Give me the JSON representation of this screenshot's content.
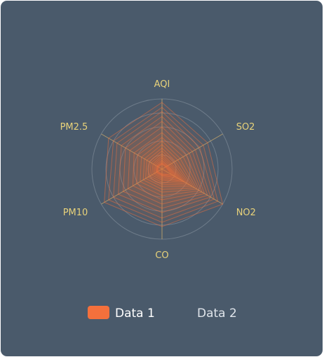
{
  "chart_data": {
    "type": "radar",
    "indicators": [
      "AQI",
      "SO2",
      "NO2",
      "CO",
      "PM10",
      "PM2.5"
    ],
    "indicator_max": [
      100,
      100,
      100,
      100,
      100,
      100
    ],
    "grid_rings": 5,
    "legend_position": "bottom",
    "series": [
      {
        "name": "Data 1",
        "color": "#f4703c",
        "fill_opacity": 0.05,
        "line_opacity": 0.5,
        "legend_selected": true,
        "values": [
          [
            95,
            75,
            100,
            82,
            95,
            88
          ],
          [
            88,
            68,
            92,
            76,
            88,
            80
          ],
          [
            82,
            62,
            86,
            70,
            80,
            74
          ],
          [
            75,
            55,
            80,
            62,
            72,
            67
          ],
          [
            68,
            50,
            75,
            56,
            64,
            60
          ],
          [
            60,
            45,
            70,
            50,
            56,
            53
          ],
          [
            52,
            40,
            66,
            44,
            48,
            46
          ],
          [
            45,
            35,
            62,
            38,
            42,
            40
          ],
          [
            40,
            30,
            58,
            33,
            36,
            34
          ],
          [
            35,
            26,
            54,
            29,
            31,
            29
          ],
          [
            30,
            22,
            50,
            25,
            27,
            25
          ],
          [
            26,
            19,
            46,
            22,
            23,
            21
          ],
          [
            22,
            16,
            42,
            19,
            20,
            18
          ],
          [
            19,
            14,
            38,
            16,
            17,
            15
          ],
          [
            16,
            12,
            35,
            14,
            14,
            13
          ],
          [
            13,
            10,
            32,
            12,
            12,
            11
          ],
          [
            11,
            9,
            28,
            10,
            10,
            9
          ],
          [
            9,
            8,
            24,
            9,
            9,
            8
          ],
          [
            8,
            7,
            20,
            8,
            8,
            7
          ],
          [
            7,
            6,
            16,
            7,
            7,
            6
          ]
        ]
      },
      {
        "name": "Data 2",
        "color": "#e6e9ee",
        "legend_selected": false,
        "values": []
      }
    ]
  },
  "legend": {
    "items": [
      {
        "label": "Data 1",
        "color": "#f4703c",
        "text_color": "#ffffff"
      },
      {
        "label": "Data 2",
        "color": "#cccccc",
        "text_color": "#dfe4ea"
      }
    ]
  },
  "colors": {
    "background": "#4a5a6b",
    "axis_line": "#c9a96b",
    "grid": "#7d8a97",
    "label": "#e8d27a"
  }
}
